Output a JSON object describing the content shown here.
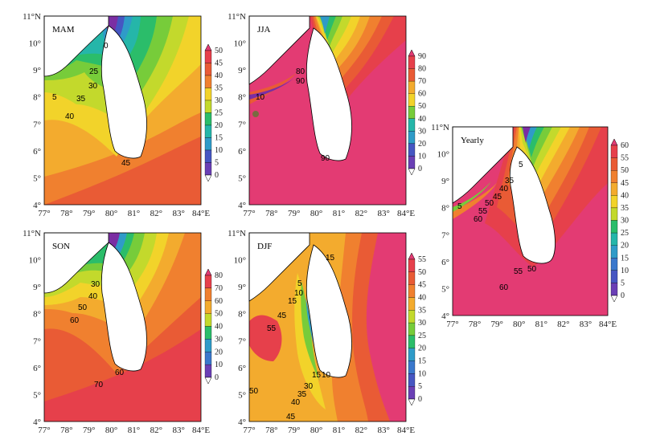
{
  "figure": {
    "colors": {
      "ramp": [
        "#ffffff",
        "#7b2ea3",
        "#6a3fb5",
        "#4656c2",
        "#3a78cc",
        "#2f9bc8",
        "#25b6a9",
        "#2bbd6a",
        "#77cc3a",
        "#c3d92c",
        "#f2d32a",
        "#f3ab2e",
        "#f0802f",
        "#e95b35",
        "#e6404b",
        "#e33b73"
      ],
      "land": "#ffffff"
    },
    "lat_labels": [
      "11°N",
      "10°",
      "9°",
      "8°",
      "7°",
      "6°",
      "5°",
      "4°"
    ],
    "lon_labels": [
      "77°",
      "78°",
      "79°",
      "80°",
      "81°",
      "82°",
      "83°",
      "84°E"
    ],
    "panels": [
      {
        "id": "mam",
        "title": "MAM",
        "colorbar": [
          "50",
          "45",
          "40",
          "35",
          "30",
          "25",
          "20",
          "15",
          "10",
          "5",
          "0"
        ],
        "contours": [
          "0",
          "5",
          "25",
          "30",
          "35",
          "40",
          "45"
        ]
      },
      {
        "id": "jja",
        "title": "JJA",
        "colorbar": [
          "90",
          "80",
          "70",
          "60",
          "50",
          "40",
          "30",
          "20",
          "10",
          "0"
        ],
        "contours": [
          "10",
          "80",
          "90",
          "90"
        ]
      },
      {
        "id": "son",
        "title": "SON",
        "colorbar": [
          "80",
          "70",
          "60",
          "50",
          "40",
          "30",
          "20",
          "10",
          "0"
        ],
        "contours": [
          "30",
          "40",
          "50",
          "60",
          "60",
          "70"
        ]
      },
      {
        "id": "djf",
        "title": "DJF",
        "colorbar": [
          "55",
          "50",
          "45",
          "40",
          "35",
          "30",
          "25",
          "20",
          "15",
          "10",
          "5",
          "0"
        ],
        "contours": [
          "15",
          "5",
          "10",
          "15",
          "45",
          "55",
          "50",
          "15",
          "10",
          "30",
          "35",
          "40",
          "45"
        ]
      },
      {
        "id": "yearly",
        "title": "Yearly",
        "colorbar": [
          "60",
          "55",
          "50",
          "45",
          "40",
          "35",
          "30",
          "25",
          "20",
          "15",
          "10",
          "5",
          "0"
        ],
        "contours": [
          "5",
          "5",
          "35",
          "40",
          "45",
          "50",
          "55",
          "60",
          "55",
          "50",
          "60"
        ]
      }
    ]
  }
}
